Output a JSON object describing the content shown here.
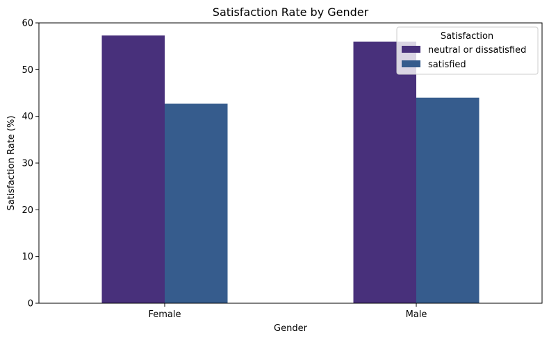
{
  "chart_data": {
    "type": "bar",
    "title": "Satisfaction Rate by Gender",
    "xlabel": "Gender",
    "ylabel": "Satisfaction Rate (%)",
    "categories": [
      "Female",
      "Male"
    ],
    "ylim": [
      0,
      60
    ],
    "yticks": [
      0,
      10,
      20,
      30,
      40,
      50,
      60
    ],
    "grid": false,
    "legend": {
      "title": "Satisfaction",
      "placement": "top-right"
    },
    "series": [
      {
        "name": "neutral or dissatisfied",
        "values": [
          57.3,
          56.0
        ],
        "color": "#48307b"
      },
      {
        "name": "satisfied",
        "values": [
          42.7,
          44.0
        ],
        "color": "#365c8d"
      }
    ]
  }
}
